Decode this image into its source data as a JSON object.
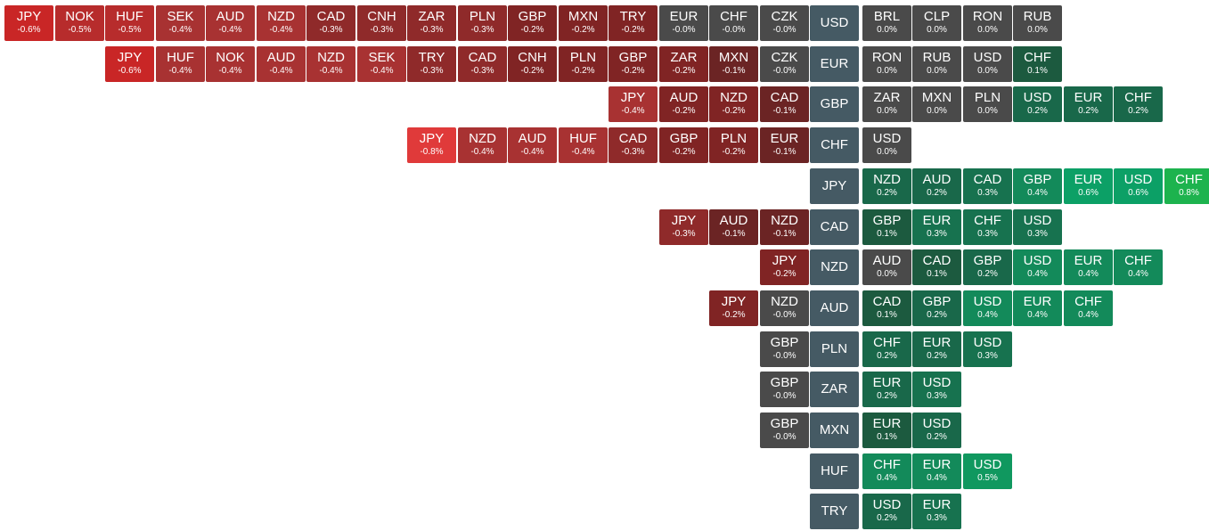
{
  "colors": {
    "base_cell": "#455a64",
    "neutral": "#4a4a4a",
    "neg_1": "#6b2424",
    "neg_2": "#802424",
    "neg_3": "#8f2a2a",
    "neg_4": "#a83232",
    "neg_5": "#b72c2c",
    "neg_6": "#c92626",
    "neg_8": "#e03a3a",
    "pos_1": "#1c5a3f",
    "pos_2": "#19684a",
    "pos_3": "#17724f",
    "pos_4": "#138a5a",
    "pos_5": "#10985f",
    "pos_6": "#0ca066",
    "pos_8": "#1db34e"
  },
  "rows": [
    {
      "base": "USD",
      "left": [
        {
          "sym": "JPY",
          "chg": "-0.6%"
        },
        {
          "sym": "NOK",
          "chg": "-0.5%"
        },
        {
          "sym": "HUF",
          "chg": "-0.5%"
        },
        {
          "sym": "SEK",
          "chg": "-0.4%"
        },
        {
          "sym": "AUD",
          "chg": "-0.4%"
        },
        {
          "sym": "NZD",
          "chg": "-0.4%"
        },
        {
          "sym": "CAD",
          "chg": "-0.3%"
        },
        {
          "sym": "CNH",
          "chg": "-0.3%"
        },
        {
          "sym": "ZAR",
          "chg": "-0.3%"
        },
        {
          "sym": "PLN",
          "chg": "-0.3%"
        },
        {
          "sym": "GBP",
          "chg": "-0.2%"
        },
        {
          "sym": "MXN",
          "chg": "-0.2%"
        },
        {
          "sym": "TRY",
          "chg": "-0.2%"
        },
        {
          "sym": "EUR",
          "chg": "-0.0%"
        },
        {
          "sym": "CHF",
          "chg": "-0.0%"
        },
        {
          "sym": "CZK",
          "chg": "-0.0%"
        }
      ],
      "right": [
        {
          "sym": "BRL",
          "chg": "0.0%"
        },
        {
          "sym": "CLP",
          "chg": "0.0%"
        },
        {
          "sym": "RON",
          "chg": "0.0%"
        },
        {
          "sym": "RUB",
          "chg": "0.0%"
        }
      ]
    },
    {
      "base": "EUR",
      "left": [
        {
          "sym": "JPY",
          "chg": "-0.6%"
        },
        {
          "sym": "HUF",
          "chg": "-0.4%"
        },
        {
          "sym": "NOK",
          "chg": "-0.4%"
        },
        {
          "sym": "AUD",
          "chg": "-0.4%"
        },
        {
          "sym": "NZD",
          "chg": "-0.4%"
        },
        {
          "sym": "SEK",
          "chg": "-0.4%"
        },
        {
          "sym": "TRY",
          "chg": "-0.3%"
        },
        {
          "sym": "CAD",
          "chg": "-0.3%"
        },
        {
          "sym": "CNH",
          "chg": "-0.2%"
        },
        {
          "sym": "PLN",
          "chg": "-0.2%"
        },
        {
          "sym": "GBP",
          "chg": "-0.2%"
        },
        {
          "sym": "ZAR",
          "chg": "-0.2%"
        },
        {
          "sym": "MXN",
          "chg": "-0.1%"
        },
        {
          "sym": "CZK",
          "chg": "-0.0%"
        }
      ],
      "right": [
        {
          "sym": "RON",
          "chg": "0.0%"
        },
        {
          "sym": "RUB",
          "chg": "0.0%"
        },
        {
          "sym": "USD",
          "chg": "0.0%"
        },
        {
          "sym": "CHF",
          "chg": "0.1%"
        }
      ]
    },
    {
      "base": "GBP",
      "left": [
        {
          "sym": "JPY",
          "chg": "-0.4%"
        },
        {
          "sym": "AUD",
          "chg": "-0.2%"
        },
        {
          "sym": "NZD",
          "chg": "-0.2%"
        },
        {
          "sym": "CAD",
          "chg": "-0.1%"
        }
      ],
      "right": [
        {
          "sym": "ZAR",
          "chg": "0.0%"
        },
        {
          "sym": "MXN",
          "chg": "0.0%"
        },
        {
          "sym": "PLN",
          "chg": "0.0%"
        },
        {
          "sym": "USD",
          "chg": "0.2%"
        },
        {
          "sym": "EUR",
          "chg": "0.2%"
        },
        {
          "sym": "CHF",
          "chg": "0.2%"
        }
      ]
    },
    {
      "base": "CHF",
      "left": [
        {
          "sym": "JPY",
          "chg": "-0.8%"
        },
        {
          "sym": "NZD",
          "chg": "-0.4%"
        },
        {
          "sym": "AUD",
          "chg": "-0.4%"
        },
        {
          "sym": "HUF",
          "chg": "-0.4%"
        },
        {
          "sym": "CAD",
          "chg": "-0.3%"
        },
        {
          "sym": "GBP",
          "chg": "-0.2%"
        },
        {
          "sym": "PLN",
          "chg": "-0.2%"
        },
        {
          "sym": "EUR",
          "chg": "-0.1%"
        }
      ],
      "right": [
        {
          "sym": "USD",
          "chg": "0.0%"
        }
      ]
    },
    {
      "base": "JPY",
      "left": [],
      "right": [
        {
          "sym": "NZD",
          "chg": "0.2%"
        },
        {
          "sym": "AUD",
          "chg": "0.2%"
        },
        {
          "sym": "CAD",
          "chg": "0.3%"
        },
        {
          "sym": "GBP",
          "chg": "0.4%"
        },
        {
          "sym": "EUR",
          "chg": "0.6%"
        },
        {
          "sym": "USD",
          "chg": "0.6%"
        },
        {
          "sym": "CHF",
          "chg": "0.8%"
        }
      ]
    },
    {
      "base": "CAD",
      "left": [
        {
          "sym": "JPY",
          "chg": "-0.3%"
        },
        {
          "sym": "AUD",
          "chg": "-0.1%"
        },
        {
          "sym": "NZD",
          "chg": "-0.1%"
        }
      ],
      "right": [
        {
          "sym": "GBP",
          "chg": "0.1%"
        },
        {
          "sym": "EUR",
          "chg": "0.3%"
        },
        {
          "sym": "CHF",
          "chg": "0.3%"
        },
        {
          "sym": "USD",
          "chg": "0.3%"
        }
      ]
    },
    {
      "base": "NZD",
      "left": [
        {
          "sym": "JPY",
          "chg": "-0.2%"
        }
      ],
      "right": [
        {
          "sym": "AUD",
          "chg": "0.0%"
        },
        {
          "sym": "CAD",
          "chg": "0.1%"
        },
        {
          "sym": "GBP",
          "chg": "0.2%"
        },
        {
          "sym": "USD",
          "chg": "0.4%"
        },
        {
          "sym": "EUR",
          "chg": "0.4%"
        },
        {
          "sym": "CHF",
          "chg": "0.4%"
        }
      ]
    },
    {
      "base": "AUD",
      "left": [
        {
          "sym": "JPY",
          "chg": "-0.2%"
        },
        {
          "sym": "NZD",
          "chg": "-0.0%"
        }
      ],
      "right": [
        {
          "sym": "CAD",
          "chg": "0.1%"
        },
        {
          "sym": "GBP",
          "chg": "0.2%"
        },
        {
          "sym": "USD",
          "chg": "0.4%"
        },
        {
          "sym": "EUR",
          "chg": "0.4%"
        },
        {
          "sym": "CHF",
          "chg": "0.4%"
        }
      ]
    },
    {
      "base": "PLN",
      "left": [
        {
          "sym": "GBP",
          "chg": "-0.0%"
        }
      ],
      "right": [
        {
          "sym": "CHF",
          "chg": "0.2%"
        },
        {
          "sym": "EUR",
          "chg": "0.2%"
        },
        {
          "sym": "USD",
          "chg": "0.3%"
        }
      ]
    },
    {
      "base": "ZAR",
      "left": [
        {
          "sym": "GBP",
          "chg": "-0.0%"
        }
      ],
      "right": [
        {
          "sym": "EUR",
          "chg": "0.2%"
        },
        {
          "sym": "USD",
          "chg": "0.3%"
        }
      ]
    },
    {
      "base": "MXN",
      "left": [
        {
          "sym": "GBP",
          "chg": "-0.0%"
        }
      ],
      "right": [
        {
          "sym": "EUR",
          "chg": "0.1%"
        },
        {
          "sym": "USD",
          "chg": "0.2%"
        }
      ]
    },
    {
      "base": "HUF",
      "left": [],
      "right": [
        {
          "sym": "CHF",
          "chg": "0.4%"
        },
        {
          "sym": "EUR",
          "chg": "0.4%"
        },
        {
          "sym": "USD",
          "chg": "0.5%"
        }
      ]
    },
    {
      "base": "TRY",
      "left": [],
      "right": [
        {
          "sym": "USD",
          "chg": "0.2%"
        },
        {
          "sym": "EUR",
          "chg": "0.3%"
        }
      ]
    }
  ]
}
